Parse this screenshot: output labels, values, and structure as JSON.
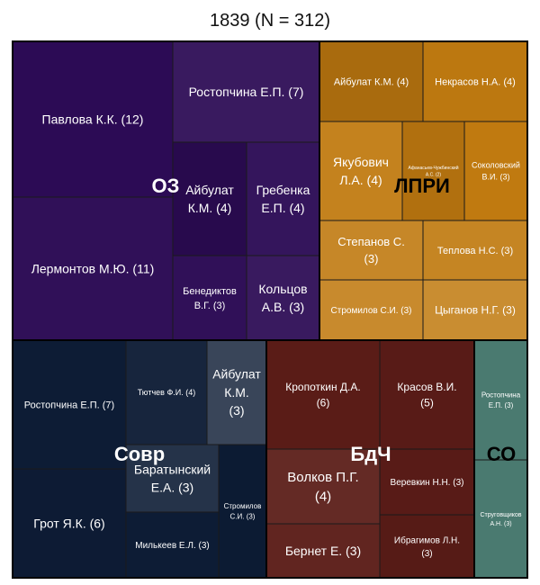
{
  "chart_data": {
    "type": "treemap",
    "title": "1839 (N = 312)",
    "groups": [
      {
        "name": "ОЗ",
        "color": "#2c0b55",
        "items": [
          {
            "label": "Павлова К.К. (12)",
            "value": 12
          },
          {
            "label": "Лермонтов М.Ю. (11)",
            "value": 11
          },
          {
            "label": "Ростопчина Е.П. (7)",
            "value": 7
          },
          {
            "label": "Айбулат К.М. (4)",
            "value": 4
          },
          {
            "label": "Гребенка Е.П. (4)",
            "value": 4
          },
          {
            "label": "Бенедиктов В.Г. (3)",
            "value": 3
          },
          {
            "label": "Кольцов А.В. (3)",
            "value": 3
          }
        ]
      },
      {
        "name": "ЛПРИ",
        "color": "#c07a10",
        "items": [
          {
            "label": "Айбулат К.М. (4)",
            "value": 4
          },
          {
            "label": "Некрасов Н.А. (4)",
            "value": 4
          },
          {
            "label": "Якубович Л.А. (4)",
            "value": 4
          },
          {
            "label": "Афанасьев-Чужбинский А.С. (2)",
            "value": 2
          },
          {
            "label": "Соколовский В.И. (3)",
            "value": 3
          },
          {
            "label": "Степанов С. (3)",
            "value": 3
          },
          {
            "label": "Теплова Н.С. (3)",
            "value": 3
          },
          {
            "label": "Стромилов С.И. (3)",
            "value": 3
          },
          {
            "label": "Цыганов Н.Г. (3)",
            "value": 3
          }
        ]
      },
      {
        "name": "Совр",
        "color": "#0d1c35",
        "items": [
          {
            "label": "Ростопчина Е.П. (7)",
            "value": 7
          },
          {
            "label": "Грот Я.К. (6)",
            "value": 6
          },
          {
            "label": "Тютчев Ф.И. (4)",
            "value": 4
          },
          {
            "label": "Айбулат К.М. (3)",
            "value": 3
          },
          {
            "label": "Баратынский Е.А. (3)",
            "value": 3
          },
          {
            "label": "Стромилов С.И. (3)",
            "value": 3
          },
          {
            "label": "Милькеев Е.Л. (3)",
            "value": 3
          }
        ]
      },
      {
        "name": "БдЧ",
        "color": "#5a1c17",
        "items": [
          {
            "label": "Кропоткин Д.А. (6)",
            "value": 6
          },
          {
            "label": "Красов В.И. (5)",
            "value": 5
          },
          {
            "label": "Волков П.Г. (4)",
            "value": 4
          },
          {
            "label": "Веревкин Н.Н. (3)",
            "value": 3
          },
          {
            "label": "Бернет Е. (3)",
            "value": 3
          },
          {
            "label": "Ибрагимов Л.Н. (3)",
            "value": 3
          }
        ]
      },
      {
        "name": "СО",
        "color": "#4a7a70",
        "items": [
          {
            "label": "Ростопчина Е.П. (3)",
            "value": 3
          },
          {
            "label": "Струговщиков А.Н. (3)",
            "value": 3
          }
        ]
      }
    ]
  }
}
